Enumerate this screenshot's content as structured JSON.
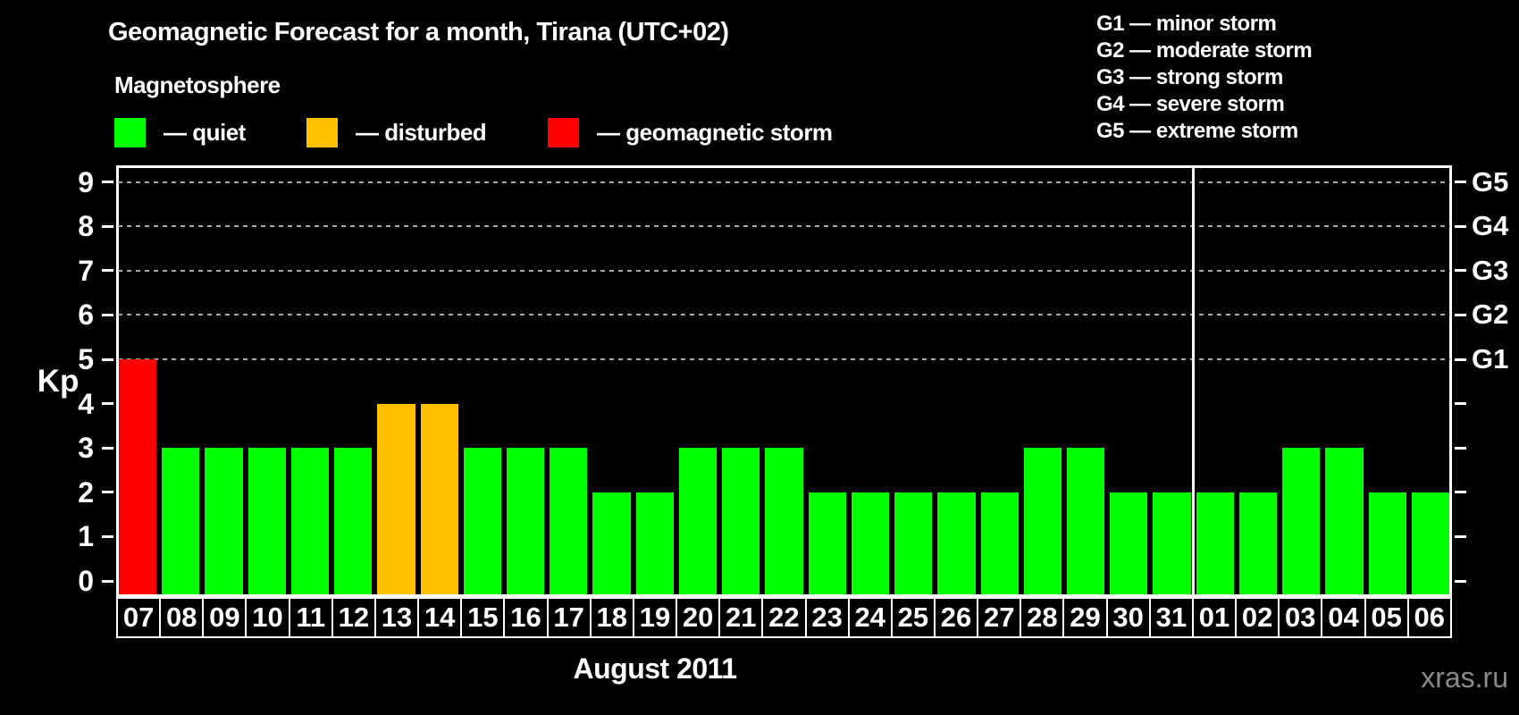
{
  "title": "Geomagnetic Forecast for a month, Tirana (UTC+02)",
  "subtitle": "Magnetosphere",
  "legend": {
    "items": [
      {
        "status": "quiet",
        "color": "#00ff00",
        "label": "— quiet"
      },
      {
        "status": "disturbed",
        "color": "#ffc000",
        "label": "— disturbed"
      },
      {
        "status": "storm",
        "color": "#ff0000",
        "label": "— geomagnetic storm"
      }
    ]
  },
  "g_legend": [
    "G1 — minor storm",
    "G2 — moderate storm",
    "G3 — strong storm",
    "G4 — severe storm",
    "G5 — extreme storm"
  ],
  "watermark": "xras.ru",
  "chart_data": {
    "type": "bar",
    "title": "Geomagnetic Forecast for a month, Tirana (UTC+02)",
    "xlabel": "August 2011",
    "ylabel": "Kp",
    "ylim": [
      0,
      9
    ],
    "yticks": [
      0,
      1,
      2,
      3,
      4,
      5,
      6,
      7,
      8,
      9
    ],
    "gridlines_at": [
      5,
      6,
      7,
      8,
      9
    ],
    "right_axis_labels": {
      "G1": 5,
      "G2": 6,
      "G3": 7,
      "G4": 8,
      "G5": 9
    },
    "categories": [
      "07",
      "08",
      "09",
      "10",
      "11",
      "12",
      "13",
      "14",
      "15",
      "16",
      "17",
      "18",
      "19",
      "20",
      "21",
      "22",
      "23",
      "24",
      "25",
      "26",
      "27",
      "28",
      "29",
      "30",
      "31",
      "01",
      "02",
      "03",
      "04",
      "05",
      "06"
    ],
    "values": [
      5,
      3,
      3,
      3,
      3,
      3,
      4,
      4,
      3,
      3,
      3,
      2,
      2,
      3,
      3,
      3,
      2,
      2,
      2,
      2,
      2,
      3,
      3,
      2,
      2,
      2,
      2,
      3,
      3,
      2,
      2
    ],
    "statuses": [
      "storm",
      "quiet",
      "quiet",
      "quiet",
      "quiet",
      "quiet",
      "disturbed",
      "disturbed",
      "quiet",
      "quiet",
      "quiet",
      "quiet",
      "quiet",
      "quiet",
      "quiet",
      "quiet",
      "quiet",
      "quiet",
      "quiet",
      "quiet",
      "quiet",
      "quiet",
      "quiet",
      "quiet",
      "quiet",
      "quiet",
      "quiet",
      "quiet",
      "quiet",
      "quiet",
      "quiet"
    ],
    "colors": {
      "quiet": "#00ff00",
      "disturbed": "#ffc000",
      "storm": "#ff0000"
    },
    "month_separator_after_index": 24,
    "legend_position": "top-left",
    "grid": "dashed horizontal at storm levels only"
  }
}
